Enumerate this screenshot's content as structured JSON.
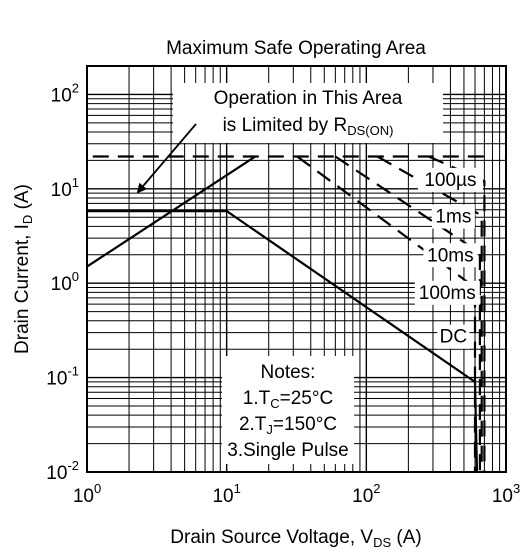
{
  "chart_data": {
    "type": "line",
    "title": "Maximum Safe Operating Area",
    "xlabel": "Drain Source Voltage, V",
    "xlabel_sub": "DS",
    "xlabel_unit": "(A)",
    "ylabel": "Drain Current, I",
    "ylabel_sub": "D",
    "ylabel_unit": "(A)",
    "x_scale": "log",
    "y_scale": "log",
    "xlim": [
      1,
      1000
    ],
    "ylim": [
      0.01,
      200
    ],
    "grid": true,
    "x_ticks": [
      {
        "value": 1,
        "base": "10",
        "exp": "0"
      },
      {
        "value": 10,
        "base": "10",
        "exp": "1"
      },
      {
        "value": 100,
        "base": "10",
        "exp": "2"
      },
      {
        "value": 1000,
        "base": "10",
        "exp": "3"
      }
    ],
    "y_ticks": [
      {
        "value": 0.01,
        "base": "10",
        "exp": "-2"
      },
      {
        "value": 0.1,
        "base": "10",
        "exp": "-1"
      },
      {
        "value": 1,
        "base": "10",
        "exp": "0"
      },
      {
        "value": 10,
        "base": "10",
        "exp": "1"
      },
      {
        "value": 100,
        "base": "10",
        "exp": "2"
      }
    ],
    "series": [
      {
        "name": "DC",
        "style": "solid",
        "x": [
          1,
          10,
          600,
          620
        ],
        "y": [
          5.8,
          5.8,
          0.09,
          0.01
        ]
      },
      {
        "name": "100ms",
        "style": "dashed",
        "x": [
          32,
          600,
          600
        ],
        "y": [
          22,
          0.9,
          0.01
        ]
      },
      {
        "name": "10ms",
        "style": "dashed",
        "x": [
          60,
          650,
          650
        ],
        "y": [
          22,
          2.1,
          0.01
        ]
      },
      {
        "name": "1ms",
        "style": "dashed",
        "x": [
          120,
          670,
          670
        ],
        "y": [
          22,
          5.2,
          0.01
        ]
      },
      {
        "name": "100µs",
        "style": "dashed",
        "x": [
          280,
          700,
          700
        ],
        "y": [
          22,
          12,
          0.01
        ]
      }
    ],
    "extra_lines": [
      {
        "name": "rds-on-limit",
        "style": "solid",
        "x": [
          1,
          16
        ],
        "y": [
          1.5,
          22
        ]
      },
      {
        "name": "current-limit",
        "style": "dashed",
        "x": [
          1.1,
          700
        ],
        "y": [
          22,
          22
        ]
      }
    ],
    "curve_labels": [
      {
        "text": "100µs",
        "x": 400,
        "y": 11
      },
      {
        "text": "1ms",
        "x": 420,
        "y": 4.5
      },
      {
        "text": "10ms",
        "x": 400,
        "y": 1.75
      },
      {
        "text": "100ms",
        "x": 380,
        "y": 0.7
      },
      {
        "text": "DC",
        "x": 420,
        "y": 0.24
      }
    ],
    "annotation": {
      "line1": "Operation in This Area",
      "line2_main": "is Limited by R",
      "line2_sub": "DS(ON)",
      "arrow_to": {
        "x": 2.5,
        "y": 5.5
      }
    },
    "notes": {
      "title": "Notes:",
      "n1_prefix": "1.T",
      "n1_sub": "C",
      "n1_suffix": "=25°C",
      "n2_prefix": "2.T",
      "n2_sub": "J",
      "n2_suffix": "=150°C",
      "n3": "3.Single Pulse"
    },
    "colors": {
      "line": "#000000",
      "grid": "#000000",
      "background": "#ffffff"
    }
  }
}
